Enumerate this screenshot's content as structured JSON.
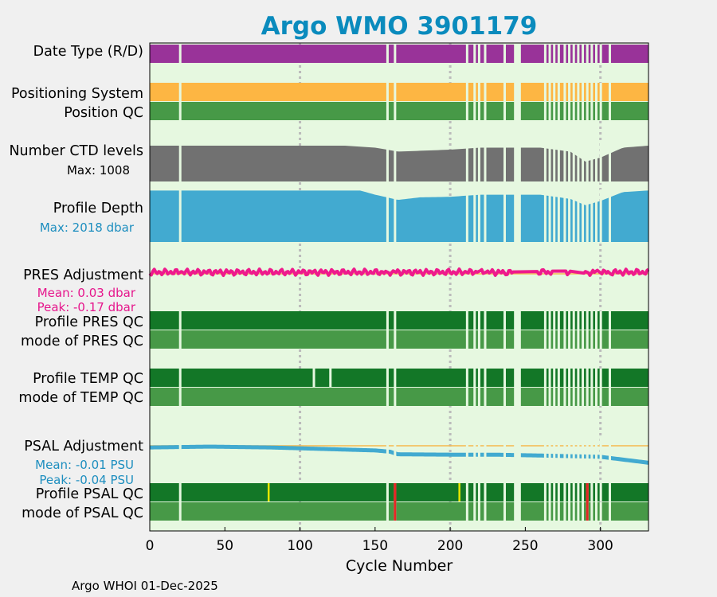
{
  "chart_data": {
    "type": "timeline",
    "title": "Argo WMO 3901179",
    "xlabel": "Cycle Number",
    "xlim": [
      0,
      332
    ],
    "xticks": [
      0,
      50,
      100,
      150,
      200,
      250,
      300
    ],
    "footer": "Argo WHOI 01-Dec-2025",
    "colors": {
      "title": "#0a8bbd",
      "plot_bg": "#e6f8e0",
      "figure_bg": "#f0f0f0",
      "date_type": "#993399",
      "positioning": "#fdb643",
      "position_qc": "#479947",
      "ctd_levels": "#717171",
      "profile_depth": "#42aad0",
      "pres_adj": "#ee1a8c",
      "pres_ref_line": "#f5b84d",
      "qc_good": "#137727",
      "qc_mode": "#479947",
      "psal_adj": "#42aad0",
      "psal_ref_line": "#f5b84d",
      "qc_yellow": "#e6e600",
      "qc_red": "#e62626",
      "depth_label": "#1d8ebf",
      "pres_label": "#e6168c",
      "psal_label": "#1d8ebf",
      "grid": "#bbbbbb"
    },
    "gaps": [
      20,
      158,
      163,
      211,
      216,
      219,
      223,
      236,
      243,
      244,
      245,
      246,
      263,
      266,
      269,
      272,
      276,
      279,
      282,
      285,
      288,
      291,
      294,
      297,
      300,
      306
    ],
    "rows": {
      "date_type": "Date Type (R/D)",
      "positioning": "Positioning System",
      "position_qc": "Position QC",
      "ctd_levels": "Number CTD levels",
      "ctd_max": "Max: 1008",
      "profile_depth": "Profile Depth",
      "depth_max": "Max: 2018 dbar",
      "pres_adj": "PRES Adjustment",
      "pres_mean": "Mean: 0.03 dbar",
      "pres_peak": "Peak: -0.17 dbar",
      "profile_pres_qc": "Profile PRES QC",
      "mode_pres_qc": "mode of PRES QC",
      "profile_temp_qc": "Profile TEMP QC",
      "mode_temp_qc": "mode of TEMP QC",
      "psal_adj": "PSAL Adjustment",
      "psal_mean": "Mean: -0.01 PSU",
      "psal_peak": "Peak: -0.04 PSU",
      "profile_psal_qc": "Profile PSAL QC",
      "mode_psal_qc": "mode of PSAL QC"
    },
    "temp_qc_extra_gaps": [
      109,
      120
    ],
    "psal_qc_yellow": [
      79,
      206
    ],
    "psal_qc_red": [
      163,
      291
    ],
    "ctd_levels_fraction": [
      [
        0,
        0.9
      ],
      [
        130,
        0.9
      ],
      [
        150,
        0.85
      ],
      [
        158,
        0.8
      ],
      [
        165,
        0.75
      ],
      [
        200,
        0.8
      ],
      [
        220,
        0.85
      ],
      [
        260,
        0.85
      ],
      [
        280,
        0.75
      ],
      [
        290,
        0.5
      ],
      [
        300,
        0.6
      ],
      [
        315,
        0.85
      ],
      [
        332,
        0.9
      ]
    ],
    "depth_fraction": [
      [
        0,
        0.98
      ],
      [
        140,
        0.98
      ],
      [
        150,
        0.9
      ],
      [
        158,
        0.85
      ],
      [
        165,
        0.8
      ],
      [
        180,
        0.85
      ],
      [
        200,
        0.86
      ],
      [
        220,
        0.9
      ],
      [
        260,
        0.9
      ],
      [
        280,
        0.82
      ],
      [
        290,
        0.7
      ],
      [
        300,
        0.78
      ],
      [
        315,
        0.95
      ],
      [
        332,
        0.98
      ]
    ],
    "pres_adj_mean_dbar": 0.03,
    "pres_adj_peak_dbar": -0.17,
    "psal_adj_series": [
      [
        0,
        -0.004
      ],
      [
        40,
        -0.002
      ],
      [
        80,
        -0.004
      ],
      [
        120,
        -0.008
      ],
      [
        150,
        -0.011
      ],
      [
        160,
        -0.014
      ],
      [
        165,
        -0.02
      ],
      [
        200,
        -0.021
      ],
      [
        230,
        -0.021
      ],
      [
        260,
        -0.023
      ],
      [
        300,
        -0.026
      ],
      [
        332,
        -0.04
      ]
    ],
    "psal_ylim": [
      -0.045,
      0.003
    ]
  }
}
